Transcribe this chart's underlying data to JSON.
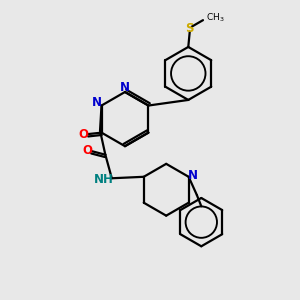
{
  "bg_color": "#e8e8e8",
  "bond_color": "#000000",
  "N_color": "#0000cd",
  "O_color": "#ff0000",
  "S_color": "#ccaa00",
  "NH_color": "#008080",
  "line_width": 1.6,
  "figsize": [
    3.0,
    3.0
  ],
  "dpi": 100,
  "xlim": [
    0,
    10
  ],
  "ylim": [
    0,
    10
  ]
}
